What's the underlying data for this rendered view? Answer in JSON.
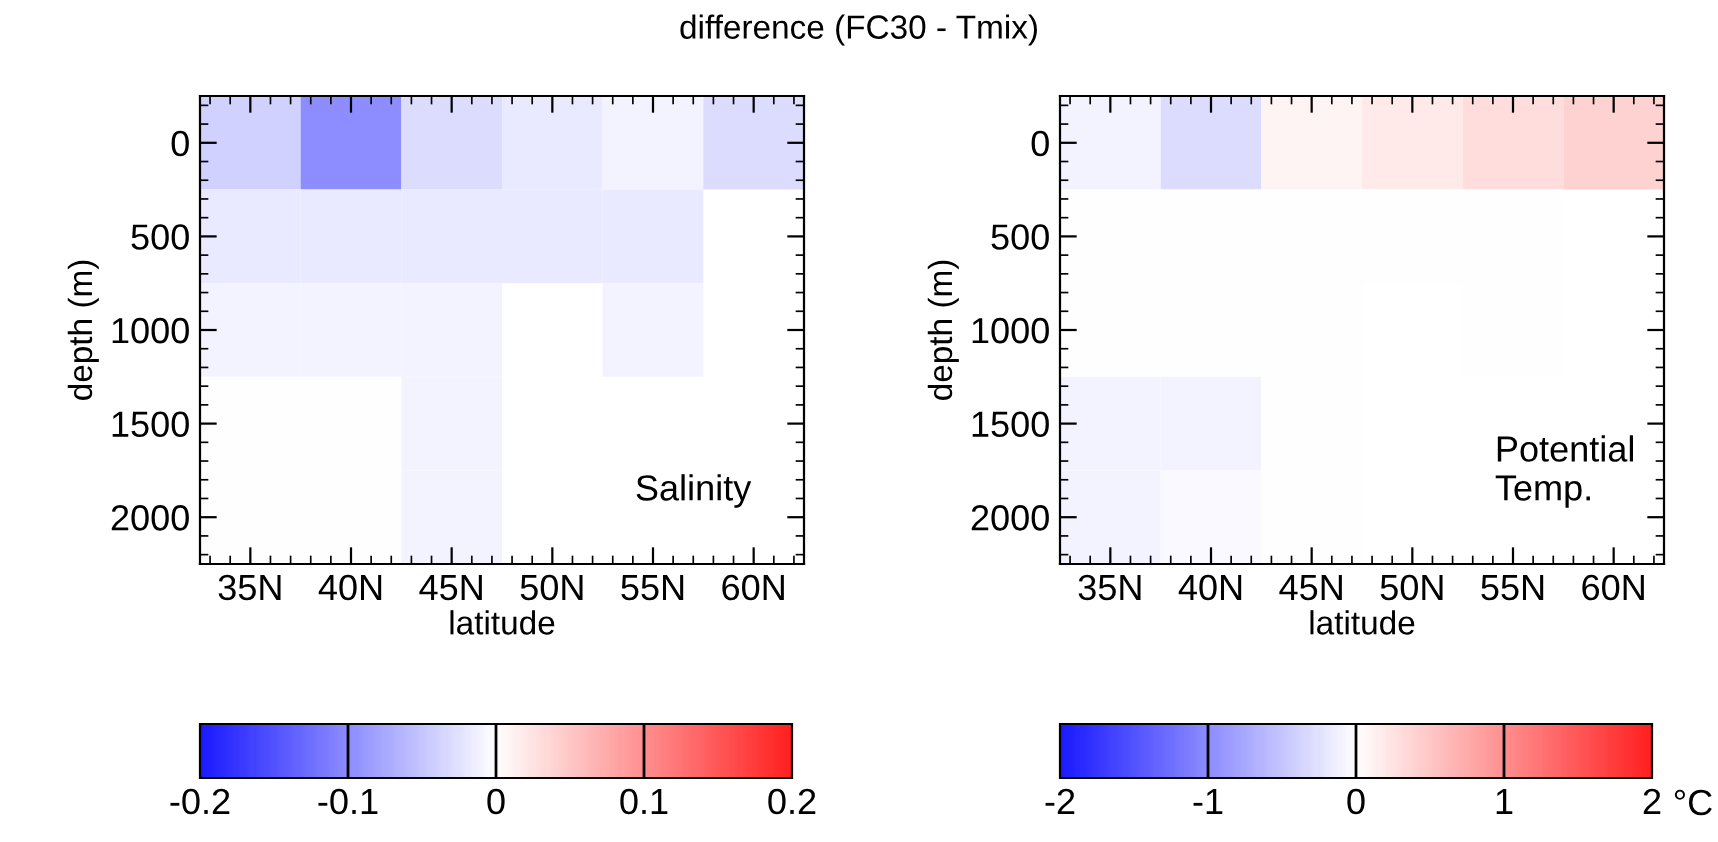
{
  "chart_data": [
    {
      "type": "heatmap",
      "title": "difference (FC30 - Tmix)",
      "xlabel": "latitude",
      "ylabel": "depth (m)",
      "annotations": [
        "Salinity"
      ],
      "categories": [
        "35N",
        "40N",
        "45N",
        "50N",
        "55N",
        "60N"
      ],
      "y_categories": [
        "0",
        "500",
        "1000",
        "1500",
        "2000"
      ],
      "clim": [
        -0.2,
        0.2
      ],
      "cticks": [
        -0.2,
        -0.1,
        0,
        0.1,
        0.2
      ],
      "cells": [
        [
          -0.04,
          -0.1,
          -0.03,
          -0.02,
          -0.01,
          -0.03
        ],
        [
          -0.02,
          -0.02,
          -0.02,
          -0.02,
          -0.02,
          null
        ],
        [
          -0.01,
          -0.01,
          -0.01,
          null,
          -0.01,
          null
        ],
        [
          0,
          0,
          -0.01,
          null,
          null,
          null
        ],
        [
          0,
          0,
          -0.01,
          null,
          null,
          null
        ]
      ]
    },
    {
      "type": "heatmap",
      "xlabel": "latitude",
      "ylabel": "depth (m)",
      "clabel": "°C",
      "annotations": [
        "Potential\nTemp."
      ],
      "categories": [
        "35N",
        "40N",
        "45N",
        "50N",
        "55N",
        "60N"
      ],
      "y_categories": [
        "0",
        "500",
        "1000",
        "1500",
        "2000"
      ],
      "clim": [
        -2,
        2
      ],
      "cticks": [
        -2,
        -1,
        0,
        1,
        2
      ],
      "cells": [
        [
          -0.1,
          -0.3,
          0.1,
          0.2,
          0.3,
          0.4
        ],
        [
          0,
          0,
          0,
          0,
          0,
          null
        ],
        [
          0,
          0,
          0,
          null,
          0,
          null
        ],
        [
          -0.1,
          -0.1,
          0,
          null,
          null,
          null
        ],
        [
          -0.1,
          -0.05,
          0,
          null,
          null,
          null
        ]
      ]
    }
  ]
}
